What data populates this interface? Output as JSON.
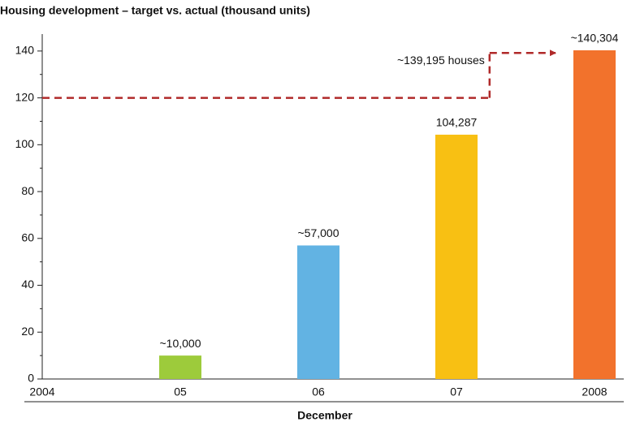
{
  "chart_data": {
    "type": "bar",
    "title": "Housing development – target vs. actual (thousand units)",
    "x_label": "December",
    "categories": [
      "2004",
      "05",
      "06",
      "07",
      "2008"
    ],
    "values": [
      null,
      10,
      57,
      104.287,
      140.304
    ],
    "value_labels": [
      null,
      "~10,000",
      "~57,000",
      "104,287",
      "~140,304"
    ],
    "colors": [
      null,
      "#9dcb3b",
      "#62b3e3",
      "#f8c013",
      "#f2722c"
    ],
    "target": {
      "values": [
        120,
        139.195
      ],
      "color": "#b02a2a",
      "label": "~139,195 houses"
    },
    "ylim": [
      0,
      150
    ],
    "yticks": [
      0,
      20,
      40,
      60,
      80,
      100,
      120,
      140
    ],
    "yminorticks": [
      10,
      30,
      50,
      70,
      90,
      110,
      130
    ]
  }
}
